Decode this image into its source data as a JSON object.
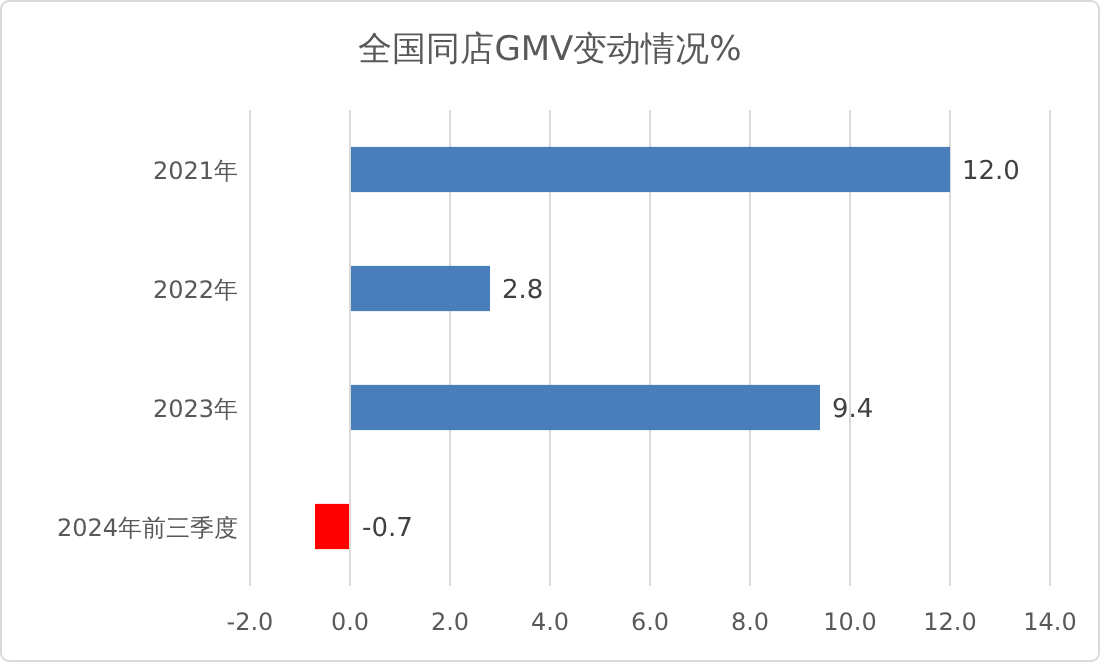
{
  "chart_data": {
    "type": "bar",
    "orientation": "horizontal",
    "title": "全国同店GMV变动情况%",
    "categories": [
      "2021年",
      "2022年",
      "2023年",
      "2024年前三季度"
    ],
    "values": [
      12.0,
      2.8,
      9.4,
      -0.7
    ],
    "colors": [
      "#4a7ebb",
      "#4a7ebb",
      "#4a7ebb",
      "#ff0000"
    ],
    "value_labels": [
      "12.0",
      "2.8",
      "9.4",
      "-0.7"
    ],
    "xlim": [
      -2,
      14
    ],
    "xticks": [
      {
        "value": -2,
        "label": "-2.0"
      },
      {
        "value": 0,
        "label": "0.0"
      },
      {
        "value": 2,
        "label": "2.0"
      },
      {
        "value": 4,
        "label": "4.0"
      },
      {
        "value": 6,
        "label": "6.0"
      },
      {
        "value": 8,
        "label": "8.0"
      },
      {
        "value": 10,
        "label": "10.0"
      },
      {
        "value": 12,
        "label": "12.0"
      },
      {
        "value": 14,
        "label": "14.0"
      }
    ],
    "grid": "x"
  }
}
